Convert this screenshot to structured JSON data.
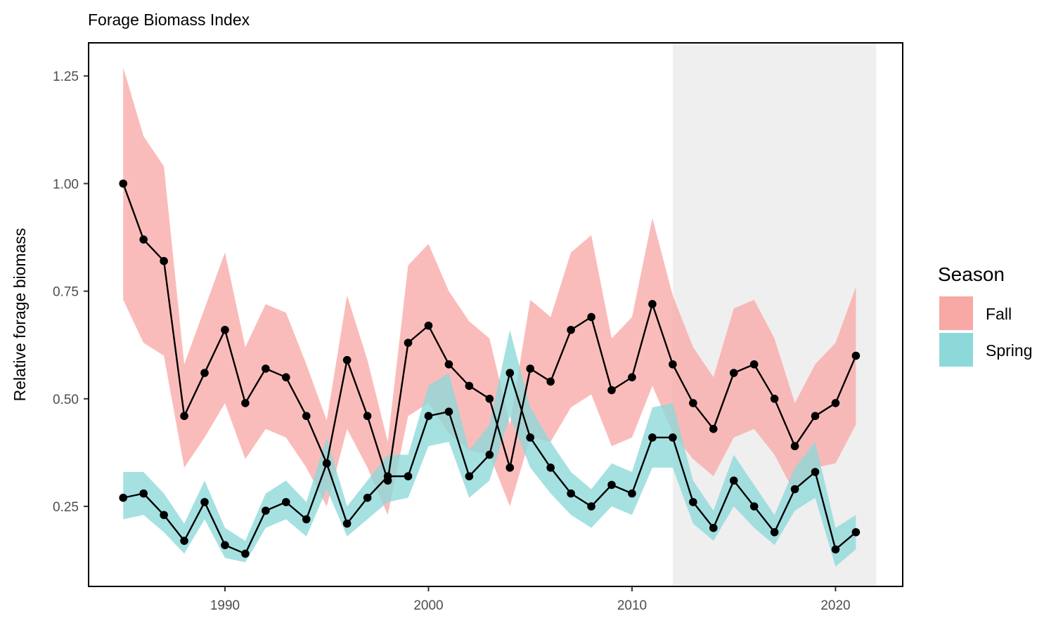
{
  "chart_data": {
    "type": "line",
    "title": "Forage Biomass Index",
    "xlabel": "",
    "ylabel": "Relative forage biomass",
    "xlim": [
      1983.3,
      2023.3
    ],
    "ylim": [
      0.064,
      1.327
    ],
    "x_ticks": [
      1990,
      2000,
      2010,
      2020
    ],
    "x_tick_labels": [
      "1990",
      "2000",
      "2010",
      "2020"
    ],
    "y_ticks": [
      0.25,
      0.5,
      0.75,
      1.0,
      1.25
    ],
    "y_tick_labels": [
      "0.25",
      "0.50",
      "0.75",
      "1.00",
      "1.25"
    ],
    "grid": false,
    "shaded_region": {
      "x_start": 2012,
      "x_end": 2022,
      "color": "#efefef"
    },
    "legend": {
      "title": "Season",
      "placement": "right",
      "entries": [
        {
          "label": "Fall",
          "color": "#f8a9a6"
        },
        {
          "label": "Spring",
          "color": "#8dd9da"
        }
      ]
    },
    "x": [
      1985,
      1986,
      1987,
      1988,
      1989,
      1990,
      1991,
      1992,
      1993,
      1994,
      1995,
      1996,
      1997,
      1998,
      1999,
      2000,
      2001,
      2002,
      2003,
      2004,
      2005,
      2006,
      2007,
      2008,
      2009,
      2010,
      2011,
      2012,
      2013,
      2014,
      2015,
      2016,
      2017,
      2018,
      2019,
      2020,
      2021
    ],
    "series": [
      {
        "name": "Fall",
        "color": "#f8a9a6",
        "values": [
          1.0,
          0.87,
          0.82,
          0.46,
          0.56,
          0.66,
          0.49,
          0.57,
          0.55,
          0.46,
          0.35,
          0.59,
          0.46,
          0.31,
          0.63,
          0.67,
          0.58,
          0.53,
          0.5,
          0.34,
          0.57,
          0.54,
          0.66,
          0.69,
          0.52,
          0.55,
          0.72,
          0.58,
          0.49,
          0.43,
          0.56,
          0.58,
          0.5,
          0.39,
          0.46,
          0.49,
          0.6
        ],
        "lower": [
          0.73,
          0.63,
          0.6,
          0.34,
          0.41,
          0.49,
          0.36,
          0.43,
          0.41,
          0.34,
          0.25,
          0.43,
          0.34,
          0.23,
          0.46,
          0.49,
          0.42,
          0.38,
          0.37,
          0.25,
          0.41,
          0.4,
          0.48,
          0.51,
          0.39,
          0.41,
          0.53,
          0.42,
          0.36,
          0.32,
          0.41,
          0.43,
          0.37,
          0.28,
          0.34,
          0.35,
          0.44
        ],
        "upper": [
          1.27,
          1.11,
          1.04,
          0.58,
          0.71,
          0.84,
          0.62,
          0.72,
          0.7,
          0.58,
          0.45,
          0.74,
          0.59,
          0.4,
          0.81,
          0.86,
          0.75,
          0.68,
          0.64,
          0.44,
          0.73,
          0.69,
          0.84,
          0.88,
          0.64,
          0.69,
          0.92,
          0.74,
          0.62,
          0.55,
          0.71,
          0.73,
          0.64,
          0.49,
          0.58,
          0.63,
          0.76
        ]
      },
      {
        "name": "Spring",
        "color": "#8dd9da",
        "values": [
          0.27,
          0.28,
          0.23,
          0.17,
          0.26,
          0.16,
          0.14,
          0.24,
          0.26,
          0.22,
          0.35,
          0.21,
          0.27,
          0.32,
          0.32,
          0.46,
          0.47,
          0.32,
          0.37,
          0.56,
          0.41,
          0.34,
          0.28,
          0.25,
          0.3,
          0.28,
          0.41,
          0.41,
          0.26,
          0.2,
          0.31,
          0.25,
          0.19,
          0.29,
          0.33,
          0.15,
          0.19
        ],
        "lower": [
          0.22,
          0.23,
          0.19,
          0.14,
          0.22,
          0.13,
          0.12,
          0.2,
          0.22,
          0.18,
          0.29,
          0.18,
          0.22,
          0.26,
          0.27,
          0.39,
          0.4,
          0.27,
          0.31,
          0.46,
          0.34,
          0.28,
          0.23,
          0.2,
          0.25,
          0.23,
          0.34,
          0.34,
          0.21,
          0.17,
          0.25,
          0.2,
          0.16,
          0.24,
          0.27,
          0.11,
          0.15
        ],
        "upper": [
          0.33,
          0.33,
          0.28,
          0.21,
          0.31,
          0.2,
          0.17,
          0.28,
          0.31,
          0.26,
          0.41,
          0.25,
          0.31,
          0.37,
          0.37,
          0.53,
          0.56,
          0.38,
          0.44,
          0.66,
          0.48,
          0.4,
          0.33,
          0.29,
          0.35,
          0.33,
          0.48,
          0.49,
          0.31,
          0.24,
          0.37,
          0.3,
          0.23,
          0.34,
          0.4,
          0.2,
          0.23
        ]
      }
    ]
  }
}
